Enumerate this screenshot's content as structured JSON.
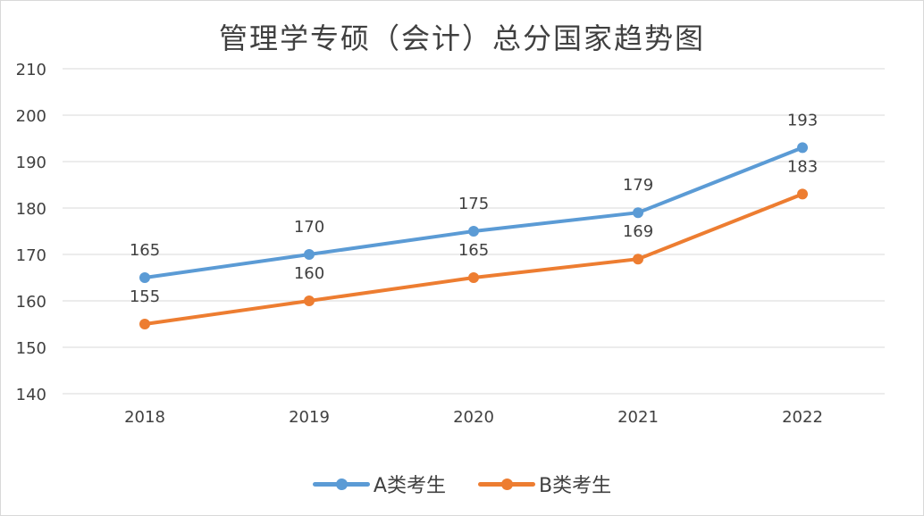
{
  "chart_data": {
    "type": "line",
    "title": "管理学专硕（会计）总分国家趋势图",
    "categories": [
      "2018",
      "2019",
      "2020",
      "2021",
      "2022"
    ],
    "series": [
      {
        "name": "A类考生",
        "values": [
          165,
          170,
          175,
          179,
          193
        ],
        "color": "#5b9bd5"
      },
      {
        "name": "B类考生",
        "values": [
          155,
          160,
          165,
          169,
          183
        ],
        "color": "#ed7d31"
      }
    ],
    "y_ticks": [
      "140",
      "150",
      "160",
      "170",
      "180",
      "190",
      "200",
      "210"
    ],
    "ylim": [
      140,
      210
    ],
    "grid": true,
    "legend": "bottom",
    "xlabel": "",
    "ylabel": ""
  }
}
